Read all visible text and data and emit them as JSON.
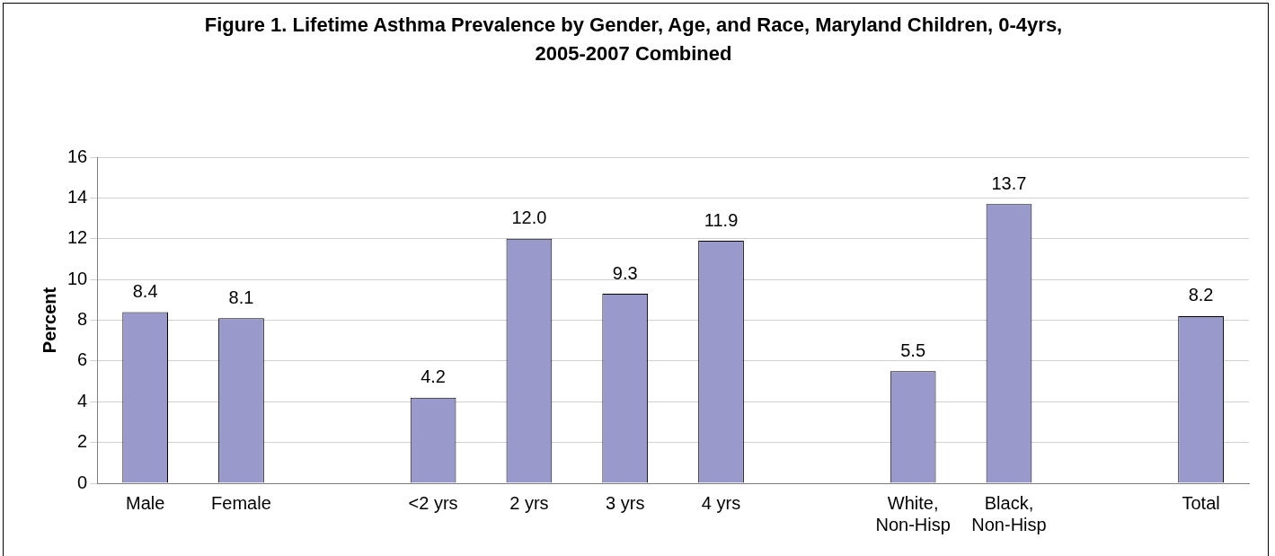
{
  "chart_data": {
    "type": "bar",
    "title": "Figure 1.  Lifetime Asthma Prevalence by Gender, Age, and Race, Maryland Children, 0-4yrs, 2005-2007 Combined",
    "ylabel": "Percent",
    "categories": [
      "Male",
      "Female",
      null,
      "<2 yrs",
      "2 yrs",
      "3 yrs",
      "4 yrs",
      null,
      "White, Non-Hisp",
      "Black, Non-Hisp",
      null,
      "Total"
    ],
    "values": [
      8.4,
      8.1,
      null,
      4.2,
      12.0,
      9.3,
      11.9,
      null,
      5.5,
      13.7,
      null,
      8.2
    ],
    "value_labels": [
      "8.4",
      "8.1",
      null,
      "4.2",
      "12.0",
      "9.3",
      "11.9",
      null,
      "5.5",
      "13.7",
      null,
      "8.2"
    ],
    "color": "#9999cc",
    "ylim": [
      0,
      16
    ],
    "yticks": [
      0,
      2,
      4,
      6,
      8,
      10,
      12,
      14,
      16
    ],
    "grid": "y",
    "legend": false
  }
}
